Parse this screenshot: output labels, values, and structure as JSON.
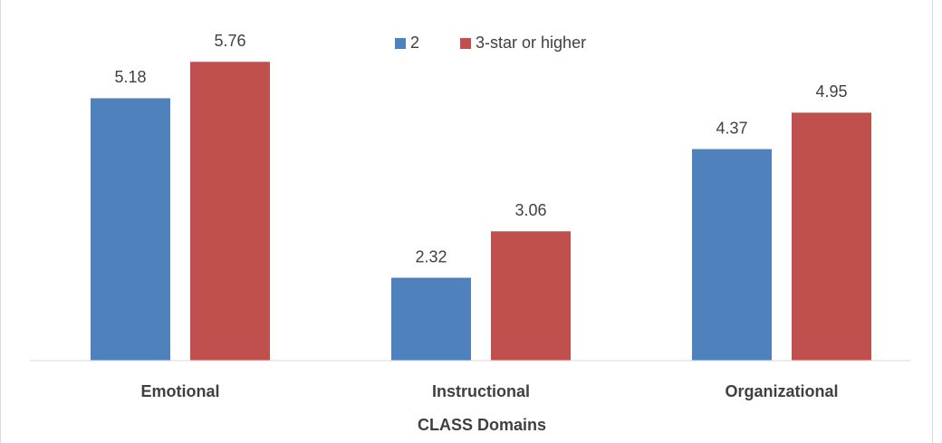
{
  "chart_data": {
    "type": "bar",
    "x_label": "CLASS Domains",
    "categories": [
      "Emotional",
      "Instructional",
      "Organizational"
    ],
    "series": [
      {
        "name": "2",
        "color": "#4f81bd",
        "values": [
          5.18,
          2.32,
          4.37
        ]
      },
      {
        "name": "3-star or higher",
        "color": "#c0504d",
        "values": [
          5.76,
          3.06,
          4.95
        ]
      }
    ],
    "ylim": [
      1,
      6.5
    ],
    "legend": "top"
  }
}
